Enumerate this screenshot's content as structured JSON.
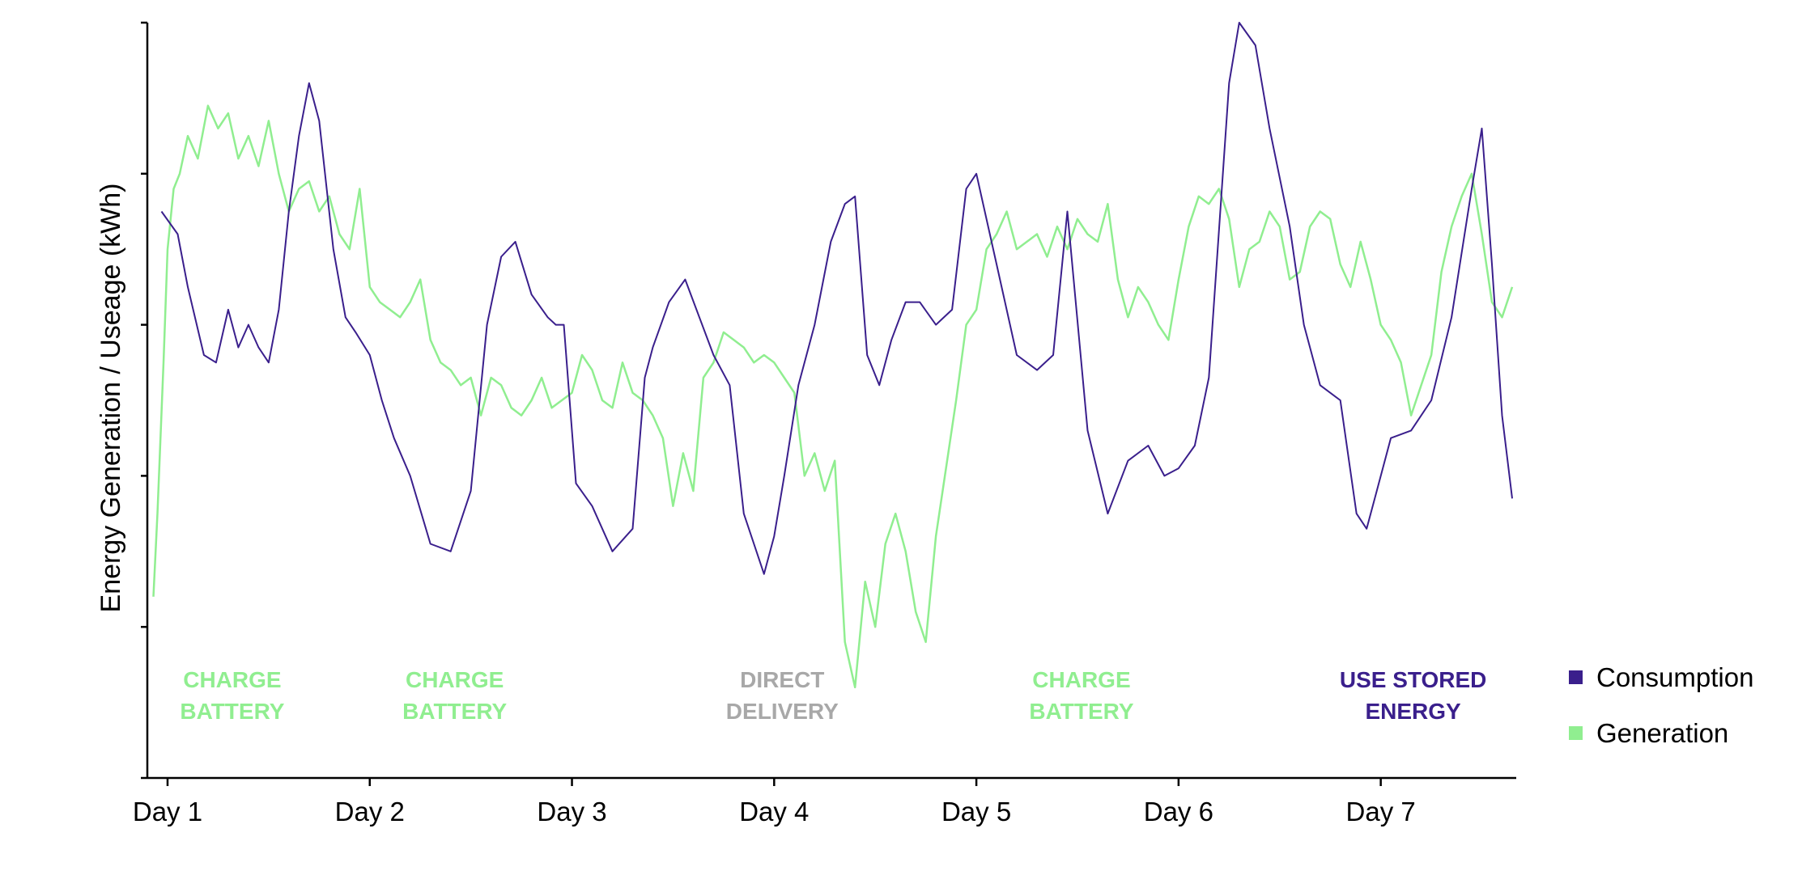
{
  "chart_data": {
    "type": "line",
    "title": "",
    "xlabel": "",
    "ylabel": "Energy Generation / Useage (kWh)",
    "x_ticks": [
      "Day 1",
      "Day 2",
      "Day 3",
      "Day 4",
      "Day 5",
      "Day 6",
      "Day 7"
    ],
    "xlim": [
      0.9,
      7.67
    ],
    "ylim": [
      0,
      10
    ],
    "y_tick_values": [
      0,
      2,
      4,
      6,
      8,
      10
    ],
    "y_tick_labels_shown": false,
    "grid": false,
    "legend_position": "right",
    "series": [
      {
        "name": "Consumption",
        "color": "#3a1f8c",
        "x": [
          0.97,
          1.05,
          1.1,
          1.18,
          1.24,
          1.3,
          1.35,
          1.4,
          1.45,
          1.5,
          1.55,
          1.6,
          1.65,
          1.7,
          1.75,
          1.82,
          1.88,
          1.93,
          2.0,
          2.06,
          2.12,
          2.2,
          2.3,
          2.4,
          2.5,
          2.58,
          2.65,
          2.72,
          2.8,
          2.88,
          2.92,
          2.96,
          3.02,
          3.1,
          3.2,
          3.3,
          3.36,
          3.4,
          3.48,
          3.56,
          3.63,
          3.7,
          3.78,
          3.85,
          3.95,
          4.0,
          4.05,
          4.12,
          4.2,
          4.28,
          4.35,
          4.4,
          4.46,
          4.52,
          4.58,
          4.65,
          4.72,
          4.8,
          4.88,
          4.95,
          5.0,
          5.1,
          5.2,
          5.3,
          5.38,
          5.45,
          5.55,
          5.65,
          5.75,
          5.85,
          5.93,
          6.0,
          6.08,
          6.15,
          6.25,
          6.3,
          6.38,
          6.45,
          6.55,
          6.62,
          6.7,
          6.8,
          6.88,
          6.93,
          6.98,
          7.05,
          7.15,
          7.25,
          7.35,
          7.45,
          7.5,
          7.55,
          7.6,
          7.65
        ],
        "y": [
          7.5,
          7.2,
          6.5,
          5.6,
          5.5,
          6.2,
          5.7,
          6.0,
          5.7,
          5.5,
          6.2,
          7.5,
          8.5,
          9.2,
          8.7,
          7.0,
          6.1,
          5.9,
          5.6,
          5.0,
          4.5,
          4.0,
          3.1,
          3.0,
          3.8,
          6.0,
          6.9,
          7.1,
          6.4,
          6.1,
          6.0,
          6.0,
          3.9,
          3.6,
          3.0,
          3.3,
          5.3,
          5.7,
          6.3,
          6.6,
          6.1,
          5.6,
          5.2,
          3.5,
          2.7,
          3.2,
          4.0,
          5.2,
          6.0,
          7.1,
          7.6,
          7.7,
          5.6,
          5.2,
          5.8,
          6.3,
          6.3,
          6.0,
          6.2,
          7.8,
          8.0,
          6.8,
          5.6,
          5.4,
          5.6,
          7.5,
          4.6,
          3.5,
          4.2,
          4.4,
          4.0,
          4.1,
          4.4,
          5.3,
          9.2,
          10.0,
          9.7,
          8.6,
          7.3,
          6.0,
          5.2,
          5.0,
          3.5,
          3.3,
          3.8,
          4.5,
          4.6,
          5.0,
          6.1,
          7.8,
          8.6,
          6.8,
          4.8,
          3.7
        ]
      },
      {
        "name": "Generation",
        "color": "#90ee90",
        "x": [
          0.93,
          0.95,
          0.98,
          1.0,
          1.03,
          1.06,
          1.1,
          1.15,
          1.2,
          1.25,
          1.3,
          1.35,
          1.4,
          1.45,
          1.5,
          1.55,
          1.6,
          1.65,
          1.7,
          1.75,
          1.8,
          1.85,
          1.9,
          1.95,
          2.0,
          2.05,
          2.1,
          2.15,
          2.2,
          2.25,
          2.3,
          2.35,
          2.4,
          2.45,
          2.5,
          2.55,
          2.6,
          2.65,
          2.7,
          2.75,
          2.8,
          2.85,
          2.9,
          2.95,
          3.0,
          3.05,
          3.1,
          3.15,
          3.2,
          3.25,
          3.3,
          3.35,
          3.4,
          3.45,
          3.5,
          3.55,
          3.6,
          3.65,
          3.7,
          3.75,
          3.8,
          3.85,
          3.9,
          3.95,
          4.0,
          4.05,
          4.1,
          4.15,
          4.2,
          4.25,
          4.3,
          4.35,
          4.4,
          4.45,
          4.5,
          4.55,
          4.6,
          4.65,
          4.7,
          4.75,
          4.8,
          4.85,
          4.9,
          4.95,
          5.0,
          5.05,
          5.1,
          5.15,
          5.2,
          5.25,
          5.3,
          5.35,
          5.4,
          5.45,
          5.5,
          5.55,
          5.6,
          5.65,
          5.7,
          5.75,
          5.8,
          5.85,
          5.9,
          5.95,
          6.0,
          6.05,
          6.1,
          6.15,
          6.2,
          6.25,
          6.3,
          6.35,
          6.4,
          6.45,
          6.5,
          6.55,
          6.6,
          6.65,
          6.7,
          6.75,
          6.8,
          6.85,
          6.9,
          6.95,
          7.0,
          7.05,
          7.1,
          7.15,
          7.2,
          7.25,
          7.3,
          7.35,
          7.4,
          7.45,
          7.5,
          7.55,
          7.6,
          7.65
        ],
        "y": [
          2.4,
          3.5,
          5.5,
          7.0,
          7.8,
          8.0,
          8.5,
          8.2,
          8.9,
          8.6,
          8.8,
          8.2,
          8.5,
          8.1,
          8.7,
          8.0,
          7.5,
          7.8,
          7.9,
          7.5,
          7.7,
          7.2,
          7.0,
          7.8,
          6.5,
          6.3,
          6.2,
          6.1,
          6.3,
          6.6,
          5.8,
          5.5,
          5.4,
          5.2,
          5.3,
          4.8,
          5.3,
          5.2,
          4.9,
          4.8,
          5.0,
          5.3,
          4.9,
          5.0,
          5.1,
          5.6,
          5.4,
          5.0,
          4.9,
          5.5,
          5.1,
          5.0,
          4.8,
          4.5,
          3.6,
          4.3,
          3.8,
          5.3,
          5.5,
          5.9,
          5.8,
          5.7,
          5.5,
          5.6,
          5.5,
          5.3,
          5.1,
          4.0,
          4.3,
          3.8,
          4.2,
          1.8,
          1.2,
          2.6,
          2.0,
          3.1,
          3.5,
          3.0,
          2.2,
          1.8,
          3.2,
          4.1,
          5.0,
          6.0,
          6.2,
          7.0,
          7.2,
          7.5,
          7.0,
          7.1,
          7.2,
          6.9,
          7.3,
          7.0,
          7.4,
          7.2,
          7.1,
          7.6,
          6.6,
          6.1,
          6.5,
          6.3,
          6.0,
          5.8,
          6.6,
          7.3,
          7.7,
          7.6,
          7.8,
          7.4,
          6.5,
          7.0,
          7.1,
          7.5,
          7.3,
          6.6,
          6.7,
          7.3,
          7.5,
          7.4,
          6.8,
          6.5,
          7.1,
          6.6,
          6.0,
          5.8,
          5.5,
          4.8,
          5.2,
          5.6,
          6.7,
          7.3,
          7.7,
          8.0,
          7.2,
          6.3,
          6.1,
          6.5
        ]
      }
    ],
    "annotations": [
      {
        "lines": [
          "CHARGE",
          "BATTERY"
        ],
        "x": 1.32,
        "color": "#90ee90"
      },
      {
        "lines": [
          "CHARGE",
          "BATTERY"
        ],
        "x": 2.42,
        "color": "#90ee90"
      },
      {
        "lines": [
          "DIRECT",
          "DELIVERY"
        ],
        "x": 4.04,
        "color": "#a8a8a8"
      },
      {
        "lines": [
          "CHARGE",
          "BATTERY"
        ],
        "x": 5.52,
        "color": "#90ee90"
      },
      {
        "lines": [
          "USE STORED",
          "ENERGY"
        ],
        "x": 7.16,
        "color": "#3a1f8c"
      }
    ]
  }
}
